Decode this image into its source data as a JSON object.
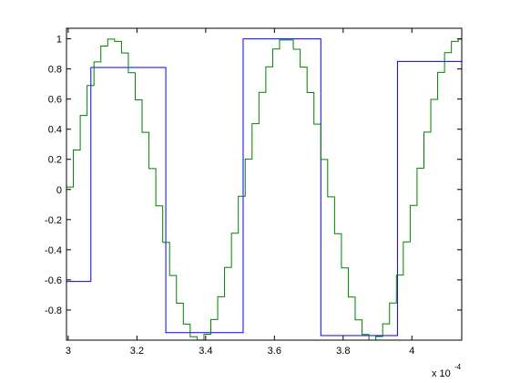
{
  "chart_data": {
    "type": "stairs",
    "xlim": [
      2.995,
      4.145
    ],
    "ylim": [
      -1.0,
      1.07
    ],
    "xticks": [
      3,
      3.2,
      3.4,
      3.6,
      3.8,
      4
    ],
    "yticks": [
      1,
      0.8,
      0.6,
      0.4,
      0.2,
      0,
      -0.2,
      -0.4,
      -0.6,
      -0.8
    ],
    "x_multiplier": "x 10",
    "x_exponent": "-4",
    "series": [
      {
        "color": "#0000ff",
        "x": [
          2.995,
          3.066,
          3.284,
          3.509,
          3.735,
          3.958
        ],
        "values": [
          -0.61,
          0.81,
          -0.95,
          1.0,
          -0.97,
          0.85
        ]
      },
      {
        "color": "#008000",
        "x": [
          2.995,
          3.015,
          3.035,
          3.055,
          3.075,
          3.095,
          3.115,
          3.135,
          3.155,
          3.175,
          3.195,
          3.215,
          3.235,
          3.255,
          3.275,
          3.295,
          3.315,
          3.335,
          3.355,
          3.375,
          3.395,
          3.415,
          3.435,
          3.455,
          3.475,
          3.495,
          3.515,
          3.535,
          3.555,
          3.575,
          3.595,
          3.615,
          3.635,
          3.655,
          3.675,
          3.695,
          3.715,
          3.735,
          3.755,
          3.775,
          3.795,
          3.815,
          3.835,
          3.855,
          3.875,
          3.895,
          3.915,
          3.935,
          3.955,
          3.975,
          3.995,
          4.015,
          4.035,
          4.055,
          4.075,
          4.095,
          4.115,
          4.135
        ],
        "values": [
          0.016,
          0.262,
          0.491,
          0.69,
          0.847,
          0.952,
          0.998,
          0.983,
          0.906,
          0.775,
          0.595,
          0.379,
          0.139,
          -0.109,
          -0.351,
          -0.571,
          -0.755,
          -0.893,
          -0.977,
          -0.999,
          -0.961,
          -0.863,
          -0.712,
          -0.517,
          -0.29,
          -0.045,
          0.202,
          0.437,
          0.645,
          0.814,
          0.932,
          0.992,
          0.992,
          0.931,
          0.812,
          0.643,
          0.434,
          0.199,
          -0.049,
          -0.293,
          -0.52,
          -0.714,
          -0.865,
          -0.962,
          -1.0,
          -0.976,
          -0.892,
          -0.753,
          -0.568,
          -0.348,
          -0.106,
          0.142,
          0.381,
          0.598,
          0.777,
          0.908,
          0.983,
          0.998
        ]
      }
    ]
  }
}
